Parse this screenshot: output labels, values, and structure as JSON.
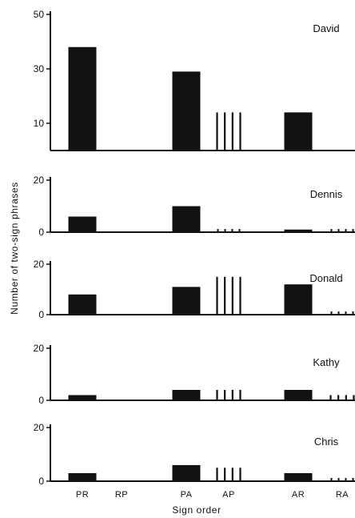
{
  "chart_data": {
    "type": "bar",
    "categories": [
      "PR",
      "RP",
      "PA",
      "AP",
      "AR",
      "RA"
    ],
    "xlabel": "Sign order",
    "ylabel": "Number of two-sign phrases",
    "bar_color": "#111111",
    "background": "#ffffff",
    "panels": [
      {
        "name": "David",
        "ylim": [
          0,
          50
        ],
        "yticks": [
          10,
          30,
          50
        ],
        "values": [
          38,
          0,
          29,
          14,
          14,
          0
        ],
        "bar_style": [
          "solid",
          "none",
          "solid",
          "striped",
          "solid",
          "none"
        ]
      },
      {
        "name": "Dennis",
        "ylim": [
          0,
          20
        ],
        "yticks": [
          0,
          20
        ],
        "values": [
          6,
          0,
          10,
          1,
          1,
          1
        ],
        "bar_style": [
          "solid",
          "none",
          "solid",
          "dotted",
          "solid",
          "dotted"
        ]
      },
      {
        "name": "Donald",
        "ylim": [
          0,
          20
        ],
        "yticks": [
          0,
          20
        ],
        "values": [
          8,
          0,
          11,
          15,
          12,
          1
        ],
        "bar_style": [
          "solid",
          "none",
          "solid",
          "striped",
          "solid",
          "dotted"
        ]
      },
      {
        "name": "Kathy",
        "ylim": [
          0,
          20
        ],
        "yticks": [
          0,
          20
        ],
        "values": [
          2,
          0,
          4,
          4,
          4,
          2
        ],
        "bar_style": [
          "solid",
          "none",
          "solid",
          "striped",
          "solid",
          "striped"
        ]
      },
      {
        "name": "Chris",
        "ylim": [
          0,
          20
        ],
        "yticks": [
          0,
          20
        ],
        "values": [
          3,
          0,
          6,
          5,
          3,
          1
        ],
        "bar_style": [
          "solid",
          "none",
          "solid",
          "striped",
          "solid",
          "dotted"
        ]
      }
    ]
  }
}
